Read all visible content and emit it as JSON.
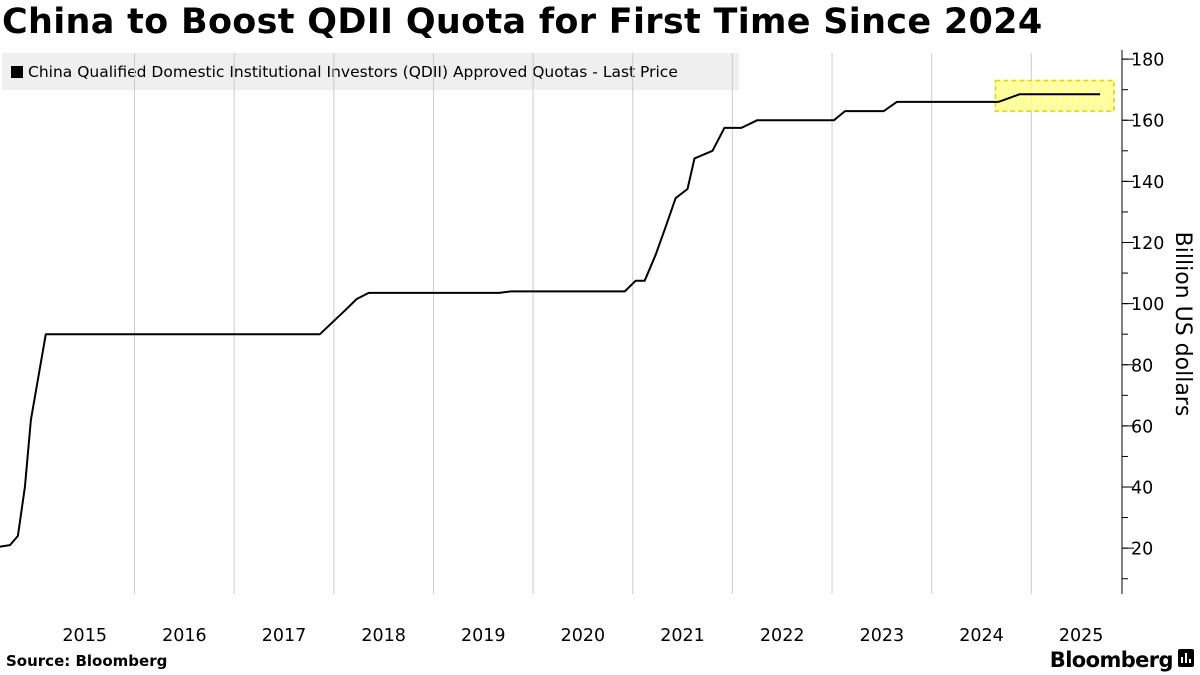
{
  "title": "China to Boost QDII Quota for First Time Since 2024",
  "legend": {
    "label": "China Qualified Domestic Institutional Investors (QDII) Approved Quotas - Last Price"
  },
  "source": "Source: Bloomberg",
  "brand": "Bloomberg",
  "colors": {
    "line": "#000000",
    "highlight_fill": "#ffff88",
    "highlight_border": "#e8d200",
    "legend_bg": "#efefef"
  },
  "chart_data": {
    "type": "line",
    "ylabel": "Billion US dollars",
    "ylim": [
      5,
      182
    ],
    "y_ticks": [
      20,
      40,
      60,
      80,
      100,
      120,
      140,
      160,
      180
    ],
    "x_range": [
      2014.15,
      2025.4
    ],
    "x_ticks": [
      {
        "label": "2015",
        "x": 2015.0
      },
      {
        "label": "2016",
        "x": 2016.0
      },
      {
        "label": "2017",
        "x": 2017.0
      },
      {
        "label": "2018",
        "x": 2018.0
      },
      {
        "label": "2019",
        "x": 2019.0
      },
      {
        "label": "2020",
        "x": 2020.0
      },
      {
        "label": "2021",
        "x": 2021.0
      },
      {
        "label": "2022",
        "x": 2022.0
      },
      {
        "label": "2023",
        "x": 2023.0
      },
      {
        "label": "2024",
        "x": 2024.0
      },
      {
        "label": "2025",
        "x": 2025.0
      }
    ],
    "series": [
      {
        "x": [
          2014.15,
          2014.25,
          2014.33,
          2014.4,
          2014.46,
          2014.61,
          2014.93,
          2017.19,
          2017.36,
          2017.62,
          2017.73,
          2017.85,
          2019.16,
          2019.28,
          2020.29,
          2020.42,
          2020.53,
          2020.62,
          2020.73,
          2020.84,
          2020.93,
          2021.05,
          2021.12,
          2021.3,
          2021.42,
          2021.59,
          2021.75,
          2022.0,
          2022.52,
          2022.63,
          2022.9,
          2023.02,
          2023.15,
          2023.97,
          2024.17,
          2024.38,
          2025.19
        ],
        "y": [
          20.5,
          21,
          24,
          40,
          62,
          90,
          90,
          90,
          90,
          98,
          101.5,
          103.5,
          103.5,
          104,
          104,
          104,
          107.5,
          107.5,
          116,
          126,
          134.5,
          137.5,
          147.5,
          150,
          157.5,
          157.5,
          160,
          160,
          160,
          163,
          163,
          163,
          166,
          166,
          166,
          168.5,
          168.5
        ]
      }
    ],
    "highlight": {
      "x0": 2024.17,
      "x1": 2025.3,
      "y0": 163,
      "y1": 173
    }
  }
}
